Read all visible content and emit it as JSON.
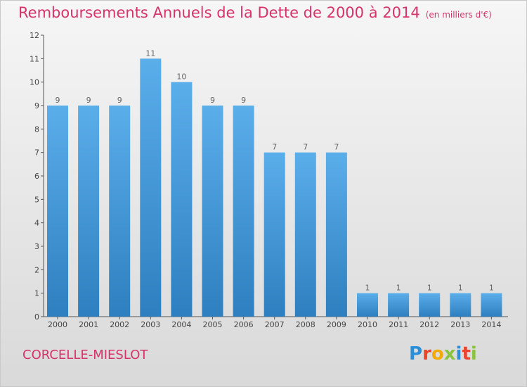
{
  "title": "Remboursements Annuels de la Dette de 2000 à 2014",
  "unit": "(en milliers d'€)",
  "place": "CORCELLE-MIESLOT",
  "logo": {
    "letters": [
      "P",
      "r",
      "o",
      "x",
      "i",
      "t",
      "i"
    ],
    "colors": [
      "#2a8fd8",
      "#e8452c",
      "#f2a900",
      "#8ac43f",
      "#2a8fd8",
      "#e8452c",
      "#8ac43f"
    ]
  },
  "chart_data": {
    "type": "bar",
    "categories": [
      "2000",
      "2001",
      "2002",
      "2003",
      "2004",
      "2005",
      "2006",
      "2007",
      "2008",
      "2009",
      "2010",
      "2011",
      "2012",
      "2013",
      "2014"
    ],
    "values": [
      9,
      9,
      9,
      11,
      10,
      9,
      9,
      7,
      7,
      7,
      1,
      1,
      1,
      1,
      1
    ],
    "ylim": [
      0,
      12
    ],
    "yticks": [
      0,
      1,
      2,
      3,
      4,
      5,
      6,
      7,
      8,
      9,
      10,
      11,
      12
    ],
    "bar_color_top": "#5aaeea",
    "bar_color_bottom": "#2e7fbf",
    "grid": false
  }
}
